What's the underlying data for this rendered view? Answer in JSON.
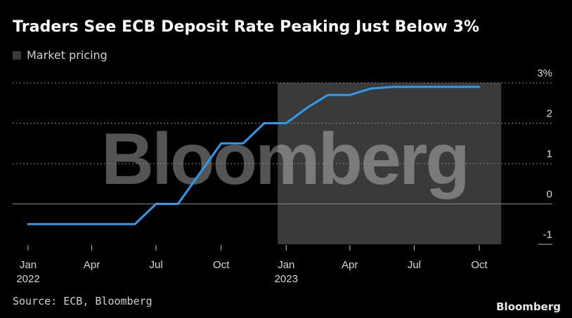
{
  "title": "Traders See ECB Deposit Rate Peaking Just Below 3%",
  "legend": {
    "label": "Market pricing",
    "swatch_color": "#3a3a3a"
  },
  "source": "Source: ECB, Bloomberg",
  "brand": "Bloomberg",
  "watermark": "Bloomberg",
  "chart_data": {
    "type": "line",
    "title": "Traders See ECB Deposit Rate Peaking Just Below 3%",
    "xlabel": "",
    "ylabel": "",
    "ylim": [
      -1,
      3
    ],
    "y_ticks": [
      {
        "value": 3,
        "label": "3%"
      },
      {
        "value": 2,
        "label": "2"
      },
      {
        "value": 1,
        "label": "1"
      },
      {
        "value": 0,
        "label": "0"
      },
      {
        "value": -1,
        "label": "-1"
      }
    ],
    "x_ticks": [
      {
        "value": "2022-01",
        "label": "Jan",
        "sublabel": "2022"
      },
      {
        "value": "2022-04",
        "label": "Apr",
        "sublabel": ""
      },
      {
        "value": "2022-07",
        "label": "Jul",
        "sublabel": ""
      },
      {
        "value": "2022-10",
        "label": "Oct",
        "sublabel": ""
      },
      {
        "value": "2023-01",
        "label": "Jan",
        "sublabel": "2023"
      },
      {
        "value": "2023-04",
        "label": "Apr",
        "sublabel": ""
      },
      {
        "value": "2023-07",
        "label": "Jul",
        "sublabel": ""
      },
      {
        "value": "2023-10",
        "label": "Oct",
        "sublabel": ""
      }
    ],
    "shaded_region": {
      "x_start": "2022-12-20",
      "x_end": "2023-11-01",
      "label": "Market pricing",
      "color": "#3a3a3a"
    },
    "grid": true,
    "line_color": "#2d9bf0",
    "series": [
      {
        "values": [
          {
            "x": "2022-01-01",
            "y": -0.5
          },
          {
            "x": "2022-06-01",
            "y": -0.5
          },
          {
            "x": "2022-07-01",
            "y": 0.0
          },
          {
            "x": "2022-08-01",
            "y": 0.0
          },
          {
            "x": "2022-10-01",
            "y": 1.5
          },
          {
            "x": "2022-11-01",
            "y": 1.5
          },
          {
            "x": "2022-12-01",
            "y": 2.0
          },
          {
            "x": "2023-01-01",
            "y": 2.0
          },
          {
            "x": "2023-02-01",
            "y": 2.4
          },
          {
            "x": "2023-03-01",
            "y": 2.7
          },
          {
            "x": "2023-04-01",
            "y": 2.7
          },
          {
            "x": "2023-05-01",
            "y": 2.86
          },
          {
            "x": "2023-06-01",
            "y": 2.9
          },
          {
            "x": "2023-10-01",
            "y": 2.9
          }
        ]
      }
    ]
  }
}
